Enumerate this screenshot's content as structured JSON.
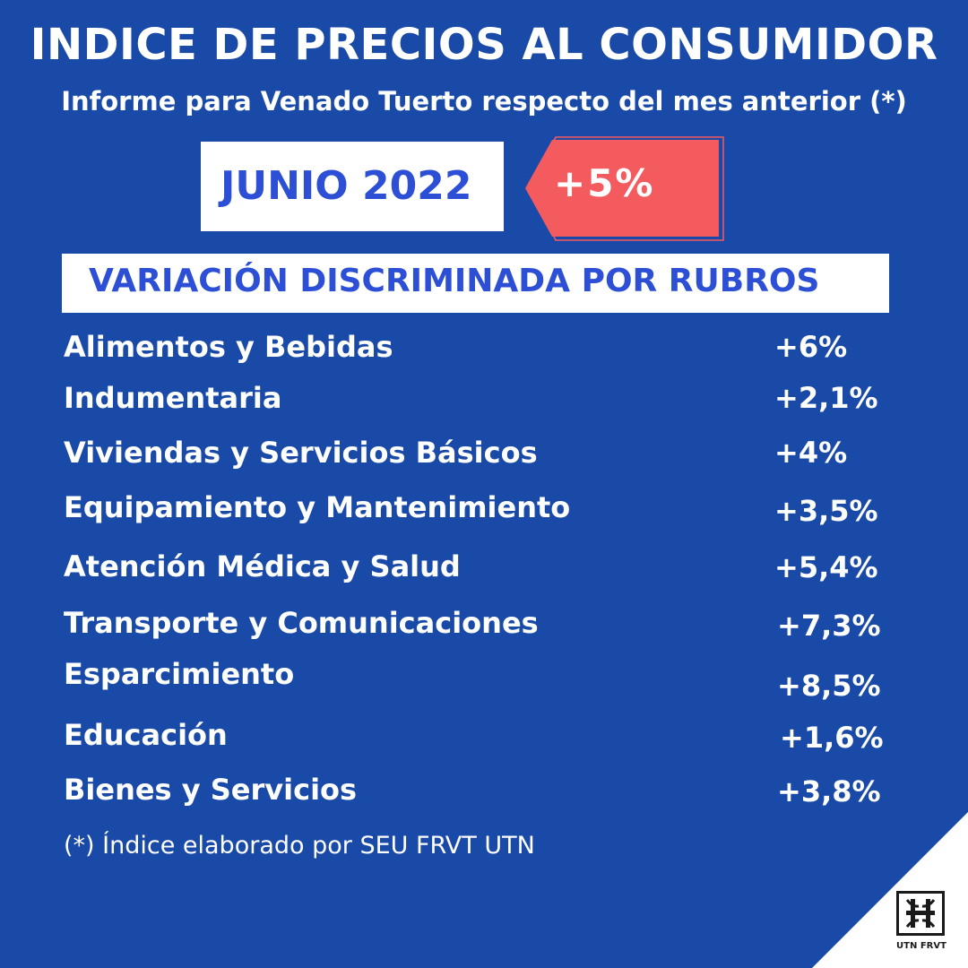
{
  "header": {
    "title": "INDICE DE PRECIOS AL CONSUMIDOR",
    "subtitle": "Informe para Venado Tuerto respecto del mes anterior (*)"
  },
  "period": {
    "label": "JUNIO 2022",
    "total_variation": "+5%"
  },
  "section": {
    "title": "VARIACIÓN DISCRIMINADA POR RUBROS"
  },
  "rubros": [
    {
      "name": "Alimentos y Bebidas",
      "value": "+6%"
    },
    {
      "name": "Indumentaria",
      "value": "+2,1%"
    },
    {
      "name": "Viviendas y Servicios Básicos",
      "value": "+4%"
    },
    {
      "name": "Equipamiento y Mantenimiento",
      "value": "+3,5%"
    },
    {
      "name": "Atención Médica y Salud",
      "value": "+5,4%"
    },
    {
      "name": "Transporte y Comunicaciones",
      "value": "+7,3%"
    },
    {
      "name": "Esparcimiento",
      "value": "+8,5%"
    },
    {
      "name": "Educación",
      "value": "+1,6%"
    },
    {
      "name": "Bienes y Servicios",
      "value": "+3,8%"
    }
  ],
  "footnote": "(*) Índice elaborado por SEU FRVT UTN",
  "logo": {
    "caption": "UTN FRVT",
    "icon": "utn-logo-icon"
  },
  "colors": {
    "background": "#1a4aa8",
    "accent_text": "#2c4fd6",
    "tag": "#f45b5f",
    "corner": "#ffffff"
  }
}
